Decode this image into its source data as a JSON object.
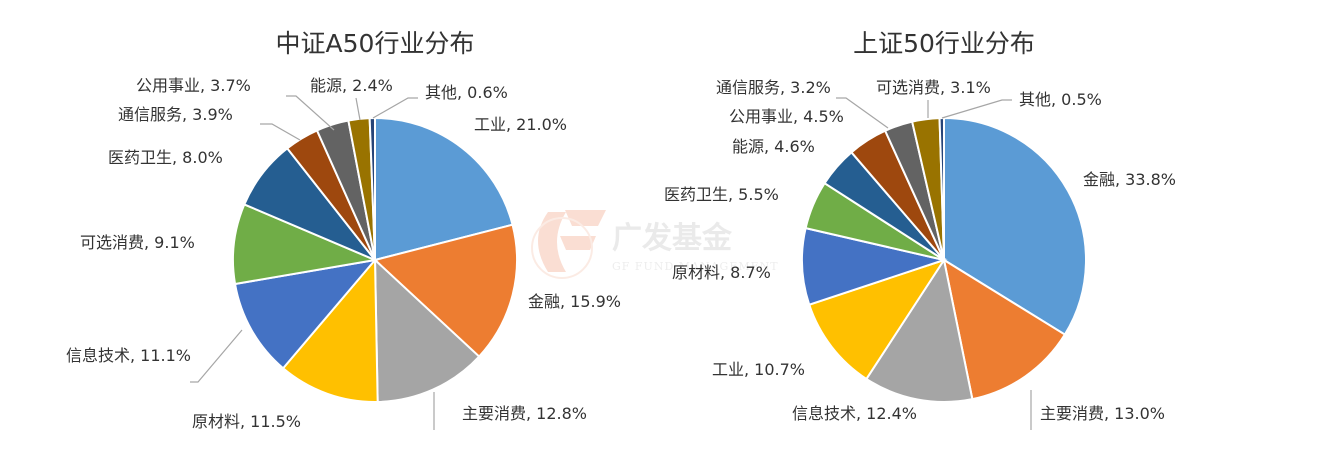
{
  "watermark": {
    "brand": "广发基金",
    "tagline": "GF FUND MANAGEMENT"
  },
  "chart_data": [
    {
      "type": "pie",
      "title": "中证A50行业分布",
      "slices": [
        {
          "label": "工业",
          "value": 21.0,
          "display": "21.0%",
          "color": "#5b9bd5"
        },
        {
          "label": "金融",
          "value": 15.9,
          "display": "15.9%",
          "color": "#ed7d31"
        },
        {
          "label": "主要消费",
          "value": 12.8,
          "display": "12.8%",
          "color": "#a5a5a5"
        },
        {
          "label": "原材料",
          "value": 11.5,
          "display": "11.5%",
          "color": "#ffc000"
        },
        {
          "label": "信息技术",
          "value": 11.1,
          "display": "11.1%",
          "color": "#4472c4"
        },
        {
          "label": "可选消费",
          "value": 9.1,
          "display": "9.1%",
          "color": "#70ad47"
        },
        {
          "label": "医药卫生",
          "value": 8.0,
          "display": "8.0%",
          "color": "#255e91"
        },
        {
          "label": "通信服务",
          "value": 3.9,
          "display": "3.9%",
          "color": "#9e480e"
        },
        {
          "label": "公用事业",
          "value": 3.7,
          "display": "3.7%",
          "color": "#636363"
        },
        {
          "label": "能源",
          "value": 2.4,
          "display": "2.4%",
          "color": "#997300"
        },
        {
          "label": "其他",
          "value": 0.6,
          "display": "0.6%",
          "color": "#264478"
        }
      ]
    },
    {
      "type": "pie",
      "title": "上证50行业分布",
      "slices": [
        {
          "label": "金融",
          "value": 33.8,
          "display": "33.8%",
          "color": "#5b9bd5"
        },
        {
          "label": "主要消费",
          "value": 13.0,
          "display": "13.0%",
          "color": "#ed7d31"
        },
        {
          "label": "信息技术",
          "value": 12.4,
          "display": "12.4%",
          "color": "#a5a5a5"
        },
        {
          "label": "工业",
          "value": 10.7,
          "display": "10.7%",
          "color": "#ffc000"
        },
        {
          "label": "原材料",
          "value": 8.7,
          "display": "8.7%",
          "color": "#4472c4"
        },
        {
          "label": "医药卫生",
          "value": 5.5,
          "display": "5.5%",
          "color": "#70ad47"
        },
        {
          "label": "能源",
          "value": 4.6,
          "display": "4.6%",
          "color": "#255e91"
        },
        {
          "label": "公用事业",
          "value": 4.5,
          "display": "4.5%",
          "color": "#9e480e"
        },
        {
          "label": "通信服务",
          "value": 3.2,
          "display": "3.2%",
          "color": "#636363"
        },
        {
          "label": "可选消费",
          "value": 3.1,
          "display": "3.1%",
          "color": "#997300"
        },
        {
          "label": "其他",
          "value": 0.5,
          "display": "0.5%",
          "color": "#264478"
        }
      ]
    }
  ]
}
